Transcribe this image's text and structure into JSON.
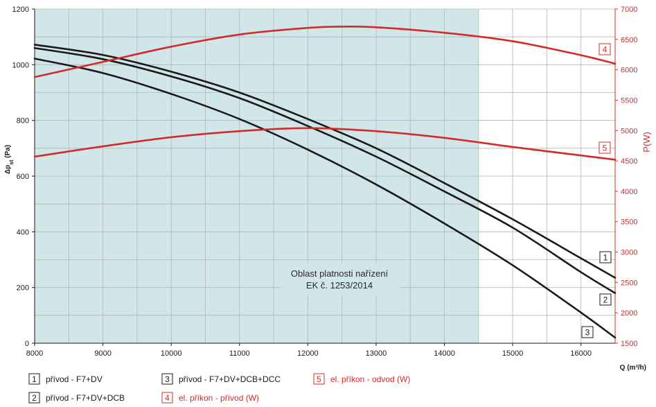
{
  "chart_data": {
    "type": "line",
    "xlabel": "Q (m³/h)",
    "ylabel_left": "Δpst (Pa)",
    "ylabel_left_main": "Δp",
    "ylabel_left_sub": "st",
    "ylabel_left_unit": " (Pa)",
    "ylabel_right": "P(W)",
    "xlim": [
      8000,
      16500
    ],
    "ylim_left": [
      0,
      1200
    ],
    "ylim_right": [
      1500,
      7000
    ],
    "x_ticks": [
      "8000",
      "9000",
      "10000",
      "11000",
      "12000",
      "13000",
      "14000",
      "15000",
      "16000"
    ],
    "y_left_ticks": [
      "0",
      "200",
      "400",
      "600",
      "800",
      "1000",
      "1200"
    ],
    "y_right_ticks": [
      "1500",
      "2000",
      "2500",
      "3000",
      "3500",
      "4000",
      "4500",
      "5000",
      "5500",
      "6000",
      "6500",
      "7000"
    ],
    "grid": true,
    "region": {
      "x_range": [
        8000,
        14500
      ],
      "label_line1": "Oblast platnosti nařízení",
      "label_line2": "EK č. 1253/2014"
    },
    "series": [
      {
        "id": "1",
        "name": "přívod - F7+DV",
        "axis": "left",
        "color": "#1a1a1a",
        "x": [
          8000,
          9000,
          10000,
          11000,
          12000,
          13000,
          14000,
          15000,
          16000,
          16500
        ],
        "y": [
          1072,
          1035,
          975,
          900,
          805,
          700,
          575,
          445,
          305,
          235
        ]
      },
      {
        "id": "2",
        "name": "přívod - F7+DV+DCB",
        "axis": "left",
        "color": "#1a1a1a",
        "x": [
          8000,
          9000,
          10000,
          11000,
          12000,
          13000,
          14000,
          15000,
          16000,
          16500
        ],
        "y": [
          1060,
          1020,
          958,
          880,
          780,
          670,
          545,
          415,
          255,
          180
        ]
      },
      {
        "id": "3",
        "name": "přívod - F7+DV+DCB+DCC",
        "axis": "left",
        "color": "#1a1a1a",
        "x": [
          8000,
          9000,
          10000,
          11000,
          12000,
          13000,
          14000,
          15000,
          16000,
          16500
        ],
        "y": [
          1022,
          970,
          895,
          805,
          695,
          570,
          430,
          280,
          110,
          20
        ]
      },
      {
        "id": "4",
        "name": "el. příkon - přívod (W)",
        "axis": "right",
        "color": "#d42a2a",
        "x": [
          8000,
          9000,
          10000,
          11000,
          12000,
          12500,
          13000,
          14000,
          15000,
          16000,
          16500
        ],
        "y": [
          5880,
          6130,
          6380,
          6580,
          6690,
          6710,
          6700,
          6610,
          6470,
          6240,
          6100
        ]
      },
      {
        "id": "5",
        "name": "el. příkon - odvod (W)",
        "axis": "right",
        "color": "#d42a2a",
        "x": [
          8000,
          9000,
          10000,
          11000,
          12000,
          13000,
          14000,
          15000,
          16000,
          16500
        ],
        "y": [
          4570,
          4740,
          4890,
          4990,
          5040,
          4990,
          4880,
          4730,
          4590,
          4520
        ]
      }
    ]
  },
  "legend": [
    {
      "id": "1",
      "label": "přívod - F7+DV",
      "color": "#1a1a1a"
    },
    {
      "id": "3",
      "label": "přívod - F7+DV+DCB+DCC",
      "color": "#1a1a1a"
    },
    {
      "id": "5",
      "label": "el. příkon - odvod (W)",
      "color": "#d42a2a"
    },
    {
      "id": "2",
      "label": "přívod - F7+DV+DCB",
      "color": "#1a1a1a"
    },
    {
      "id": "4",
      "label": "el. příkon - přívod (W)",
      "color": "#d42a2a"
    }
  ],
  "colors": {
    "grid": "#b4b4b4",
    "region_fill": "#d1e6e8",
    "black_curve": "#1a1a1a",
    "red_curve": "#d42a2a"
  }
}
